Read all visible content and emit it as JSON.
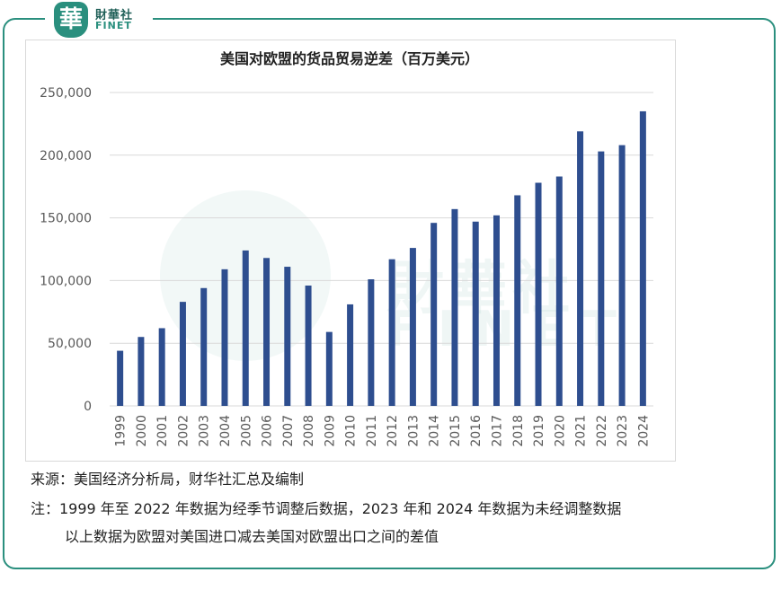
{
  "logo": {
    "mark": "華",
    "cn": "財華社",
    "en": "FINET"
  },
  "watermark": {
    "cn": "財華社",
    "en": "FINET"
  },
  "notes": {
    "source": "来源：美国经济分析局，财华社汇总及编制",
    "note1": "注：1999 年至 2022 年数据为经季节调整后数据，2023 年和 2024 年数据为未经调整数据",
    "note2": "以上数据为欧盟对美国进口减去美国对欧盟出口之间的差值"
  },
  "colors": {
    "bar": "#2e4e8f",
    "frame": "#2a8f7e",
    "grid": "#d9d9d9"
  },
  "chart_data": {
    "type": "bar",
    "title": "美国对欧盟的货品贸易逆差（百万美元）",
    "xlabel": "",
    "ylabel": "",
    "ylim": [
      0,
      250000
    ],
    "yticks": [
      0,
      50000,
      100000,
      150000,
      200000,
      250000
    ],
    "ytick_labels": [
      "0",
      "50,000",
      "100,000",
      "150,000",
      "200,000",
      "250,000"
    ],
    "grid": true,
    "categories": [
      "1999",
      "2000",
      "2001",
      "2002",
      "2003",
      "2004",
      "2005",
      "2006",
      "2007",
      "2008",
      "2009",
      "2010",
      "2011",
      "2012",
      "2013",
      "2014",
      "2015",
      "2016",
      "2017",
      "2018",
      "2019",
      "2020",
      "2021",
      "2022",
      "2023",
      "2024"
    ],
    "values": [
      44000,
      55000,
      62000,
      83000,
      94000,
      109000,
      124000,
      118000,
      111000,
      96000,
      59000,
      81000,
      101000,
      117000,
      126000,
      146000,
      157000,
      147000,
      152000,
      168000,
      178000,
      183000,
      219000,
      203000,
      208000,
      235000
    ]
  }
}
